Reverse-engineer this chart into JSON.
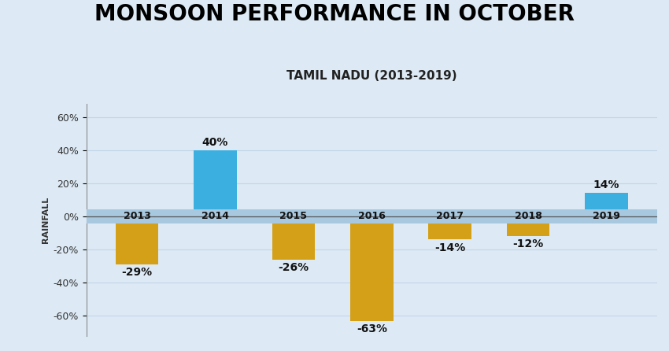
{
  "title": "MONSOON PERFORMANCE IN OCTOBER",
  "subtitle": "TAMIL NADU (2013-2019)",
  "years": [
    "2013",
    "2014",
    "2015",
    "2016",
    "2017",
    "2018",
    "2019"
  ],
  "values": [
    -29,
    40,
    -26,
    -63,
    -14,
    -12,
    14
  ],
  "labels": [
    "-29%",
    "40%",
    "-26%",
    "-63%",
    "-14%",
    "-12%",
    "14%"
  ],
  "bar_colors_positive": "#3aafe0",
  "bar_colors_negative": "#d4a017",
  "year_label_bg": "#a8c8e0",
  "background_color": "#ddeaf5",
  "ylabel": "RAINFALL",
  "ylim_min": -72,
  "ylim_max": 68,
  "yticks": [
    -60,
    -40,
    -20,
    0,
    20,
    40,
    60
  ],
  "ytick_labels": [
    "-60%",
    "-40%",
    "-20%",
    "0%",
    "20%",
    "40%",
    "60%"
  ],
  "title_fontsize": 20,
  "subtitle_fontsize": 11,
  "label_fontsize": 10,
  "year_fontsize": 9,
  "ylabel_fontsize": 8,
  "grid_color": "#c0d5e8",
  "zero_line_color": "#555555"
}
